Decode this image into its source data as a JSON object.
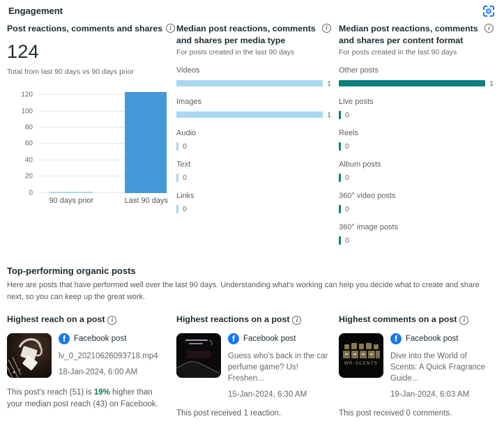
{
  "colors": {
    "accent_blue": "#1877f2",
    "bar_blue": "#4599d9",
    "bar_light_blue": "#a9d7f2",
    "bar_teal": "#0c7f7f",
    "positive_green": "#0e7a5a",
    "gridline_gray": "#e4e6eb"
  },
  "icons": {
    "info_glyph": "i",
    "facebook_glyph": "f"
  },
  "header": {
    "title": "Engagement"
  },
  "reactions_card": {
    "title": "Post reactions, comments and shares",
    "total": "124",
    "subtitle": "Total from last 90 days vs 90 days prior"
  },
  "media_type_card": {
    "title": "Median post reactions, comments and shares per media type",
    "subtitle": "For posts created in the last 90 days"
  },
  "content_format_card": {
    "title": "Median post reactions, comments and shares per content format",
    "subtitle": "For posts created in the last 90 days"
  },
  "chart_data": [
    {
      "type": "bar",
      "title": "Post reactions, comments and shares",
      "categories": [
        "90 days prior",
        "Last 90 days"
      ],
      "values": [
        0,
        124
      ],
      "bar_colors": [
        "#a9d7f2",
        "#4599d9"
      ],
      "ylim": [
        0,
        128
      ],
      "yticks": [
        0,
        20,
        40,
        60,
        80,
        100,
        120
      ],
      "grid": true,
      "legend": "none"
    },
    {
      "type": "bar",
      "orientation": "horizontal",
      "title": "Median post reactions, comments and shares per media type",
      "subtitle": "For posts created in the last 90 days",
      "categories": [
        "Videos",
        "Images",
        "Audio",
        "Text",
        "Links"
      ],
      "values": [
        1,
        1,
        0,
        0,
        0
      ],
      "xlim": [
        0,
        1
      ],
      "bar_color": "#a9d7f2",
      "grid": false
    },
    {
      "type": "bar",
      "orientation": "horizontal",
      "title": "Median post reactions, comments and shares per content format",
      "subtitle": "For posts created in the last 90 days",
      "categories": [
        "Other posts",
        "Live posts",
        "Reels",
        "Album posts",
        "360° video posts",
        "360° image posts"
      ],
      "values": [
        1,
        0,
        0,
        0,
        0,
        0
      ],
      "xlim": [
        0,
        1
      ],
      "bar_color": "#0c7f7f",
      "grid": false
    }
  ],
  "top_posts": {
    "title": "Top-performing organic posts",
    "description": "Here are posts that have performed well over the last 90 days. Understanding what's working can help you decide what to create and share next, so you can keep up the great work.",
    "cards": [
      {
        "title": "Highest reach on a post",
        "source": "Facebook post",
        "content": "lv_0_20210626093718.mp4",
        "date": "18-Jan-2024, 6:00 AM",
        "summary_prefix": "This post's reach (51) is ",
        "summary_highlight": "19%",
        "summary_suffix": " higher than your median post reach (43) on Facebook."
      },
      {
        "title": "Highest reactions on a post",
        "source": "Facebook post",
        "content": "Guess who's back in the car perfume game? Us! Freshen...",
        "date": "15-Jan-2024, 6:30 AM",
        "summary_prefix": "This post received 1 reaction.",
        "summary_highlight": "",
        "summary_suffix": ""
      },
      {
        "title": "Highest comments on a post",
        "source": "Facebook post",
        "content": "Dive into the World of Scents: A Quick Fragrance Guide...",
        "date": "19-Jan-2024, 6:03 AM",
        "summary_prefix": "This post received 0 comments.",
        "summary_highlight": "",
        "summary_suffix": "",
        "thumbnail_text": "WR-SCENTS"
      }
    ]
  }
}
